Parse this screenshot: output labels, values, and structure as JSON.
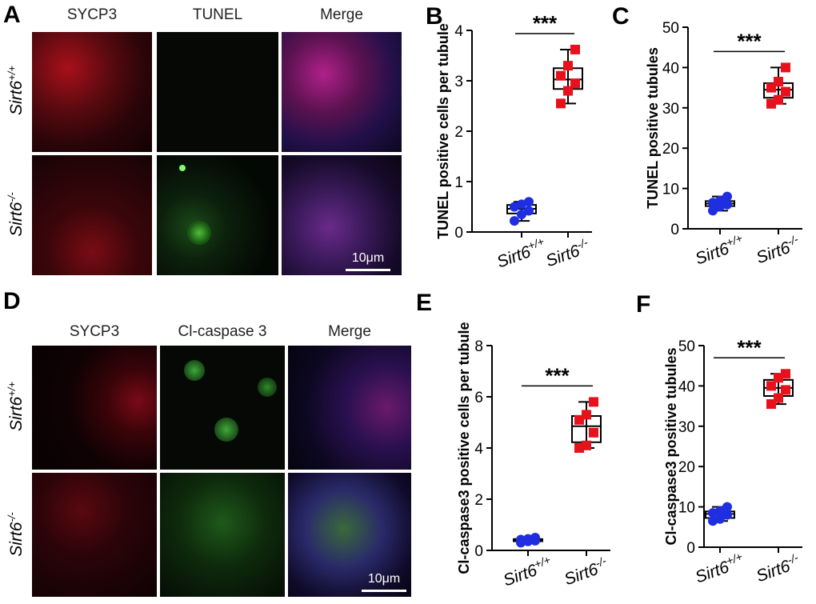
{
  "panels": {
    "A": {
      "label": "A",
      "columns": [
        "SYCP3",
        "TUNEL",
        "Merge"
      ],
      "rows": [
        "Sirt6",
        "Sirt6"
      ],
      "row_sups": [
        "+/+",
        "-/-"
      ],
      "scale": "10μm"
    },
    "D": {
      "label": "D",
      "columns": [
        "SYCP3",
        "Cl-caspase 3",
        "Merge"
      ],
      "rows": [
        "Sirt6",
        "Sirt6"
      ],
      "row_sups": [
        "+/+",
        "-/-"
      ],
      "scale": "10μm"
    }
  },
  "colors": {
    "wt": "#1f2ee0",
    "ko": "#e8101a",
    "black": "#000000"
  },
  "chart_data": [
    {
      "label": "B",
      "type": "box-scatter",
      "ylabel": "TUNEL positive cells per tubule",
      "ylim": [
        0,
        4
      ],
      "yticks": [
        0,
        1,
        2,
        3,
        4
      ],
      "categories": [
        "Sirt6",
        "Sirt6"
      ],
      "category_sups": [
        "+/+",
        "-/-"
      ],
      "significance": "***",
      "series": [
        {
          "values": [
            0.22,
            0.35,
            0.42,
            0.5,
            0.55,
            0.6
          ]
        },
        {
          "values": [
            2.55,
            2.8,
            2.95,
            3.1,
            3.3,
            3.62
          ]
        }
      ]
    },
    {
      "label": "C",
      "type": "box-scatter",
      "ylabel": "TUNEL positive tubules",
      "ylim": [
        0,
        50
      ],
      "yticks": [
        0,
        10,
        20,
        30,
        40,
        50
      ],
      "categories": [
        "Sirt6",
        "Sirt6"
      ],
      "category_sups": [
        "+/+",
        "-/-"
      ],
      "significance": "***",
      "series": [
        {
          "values": [
            4.5,
            5.5,
            6,
            6.5,
            7,
            8
          ]
        },
        {
          "values": [
            31,
            32,
            34,
            35,
            36.5,
            40
          ]
        }
      ]
    },
    {
      "label": "E",
      "type": "box-scatter",
      "ylabel": "Cl-caspase3 positive cells per tubule",
      "ylim": [
        0,
        8
      ],
      "yticks": [
        0,
        2,
        4,
        6,
        8
      ],
      "categories": [
        "Sirt6",
        "Sirt6"
      ],
      "category_sups": [
        "+/+",
        "-/-"
      ],
      "significance": "***",
      "series": [
        {
          "values": [
            0.3,
            0.35,
            0.38,
            0.42,
            0.45,
            0.5
          ]
        },
        {
          "values": [
            4.0,
            4.1,
            4.6,
            5.1,
            5.3,
            5.8
          ]
        }
      ]
    },
    {
      "label": "F",
      "type": "box-scatter",
      "ylabel": "Cl-caspase3 positive tubules",
      "ylim": [
        0,
        50
      ],
      "yticks": [
        0,
        10,
        20,
        30,
        40,
        50
      ],
      "categories": [
        "Sirt6",
        "Sirt6"
      ],
      "category_sups": [
        "+/+",
        "-/-"
      ],
      "significance": "***",
      "series": [
        {
          "values": [
            6.5,
            7,
            8,
            8.5,
            9,
            10
          ]
        },
        {
          "values": [
            35.5,
            37,
            39,
            40,
            42,
            43
          ]
        }
      ]
    }
  ]
}
